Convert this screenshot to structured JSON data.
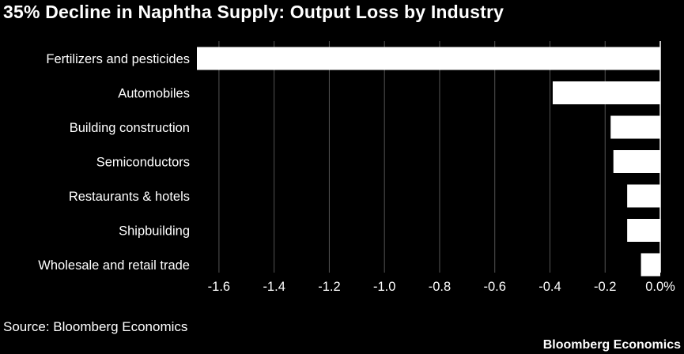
{
  "chart_data": {
    "type": "bar",
    "orientation": "horizontal",
    "title": "35% Decline in Naphtha Supply: Output Loss by Industry",
    "categories": [
      "Fertilizers and pesticides",
      "Automobiles",
      "Building construction",
      "Semiconductors",
      "Restaurants & hotels",
      "Shipbuilding",
      "Wholesale and retail trade"
    ],
    "values": [
      -1.68,
      -0.39,
      -0.18,
      -0.17,
      -0.12,
      -0.12,
      -0.07
    ],
    "xlim": [
      -1.68,
      0
    ],
    "xticks": [
      -1.6,
      -1.4,
      -1.2,
      -1.0,
      -0.8,
      -0.6,
      -0.4,
      -0.2,
      0.0
    ],
    "xtick_labels": [
      "-1.6",
      "-1.4",
      "-1.2",
      "-1.0",
      "-0.8",
      "-0.6",
      "-0.4",
      "-0.2",
      "0.0%"
    ],
    "xlabel": "",
    "ylabel": "",
    "grid": "vertical",
    "bar_color": "#ffffff",
    "background_color": "#000000",
    "grid_color": "#555555"
  },
  "footer": {
    "source": "Source: Bloomberg Economics",
    "brand": "Bloomberg Economics"
  }
}
